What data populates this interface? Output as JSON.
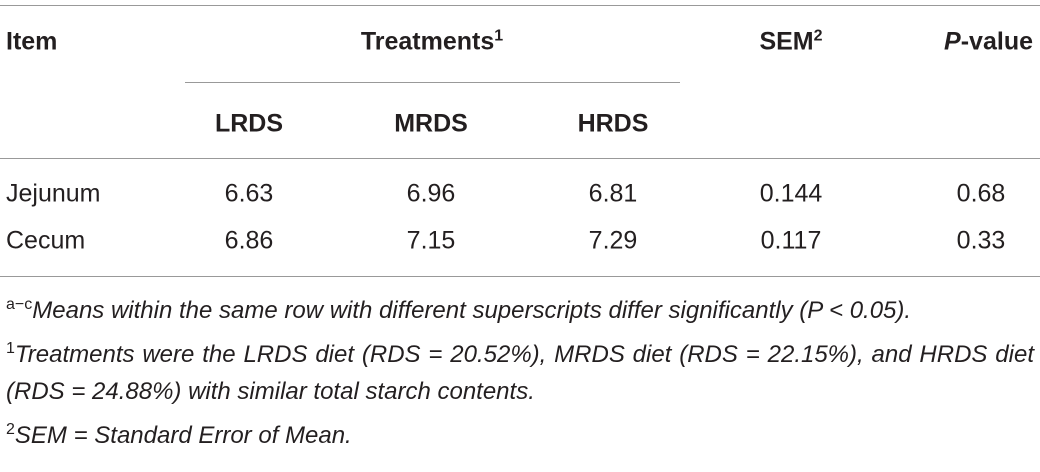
{
  "table": {
    "header": {
      "item": "Item",
      "treatments": {
        "text": "Treatments",
        "sup": "1"
      },
      "sem": {
        "text": "SEM",
        "sup": "2"
      },
      "p_value": {
        "italic": "P",
        "text": "-value"
      },
      "subheads": [
        "LRDS",
        "MRDS",
        "HRDS"
      ]
    },
    "rows": [
      [
        "Jejunum",
        "6.63",
        "6.96",
        "6.81",
        "0.144",
        "0.68"
      ],
      [
        "Cecum",
        "6.86",
        "7.15",
        "7.29",
        "0.117",
        "0.33"
      ]
    ]
  },
  "footnotes": [
    {
      "sup": "a−c",
      "text": "Means within the same row with different superscripts differ significantly (P < 0.05)."
    },
    {
      "sup": "1",
      "text": "Treatments were the LRDS diet (RDS = 20.52%), MRDS diet (RDS = 22.15%), and HRDS diet (RDS = 24.88%) with similar total starch contents."
    },
    {
      "sup": "2",
      "text": "SEM = Standard Error of Mean."
    }
  ]
}
